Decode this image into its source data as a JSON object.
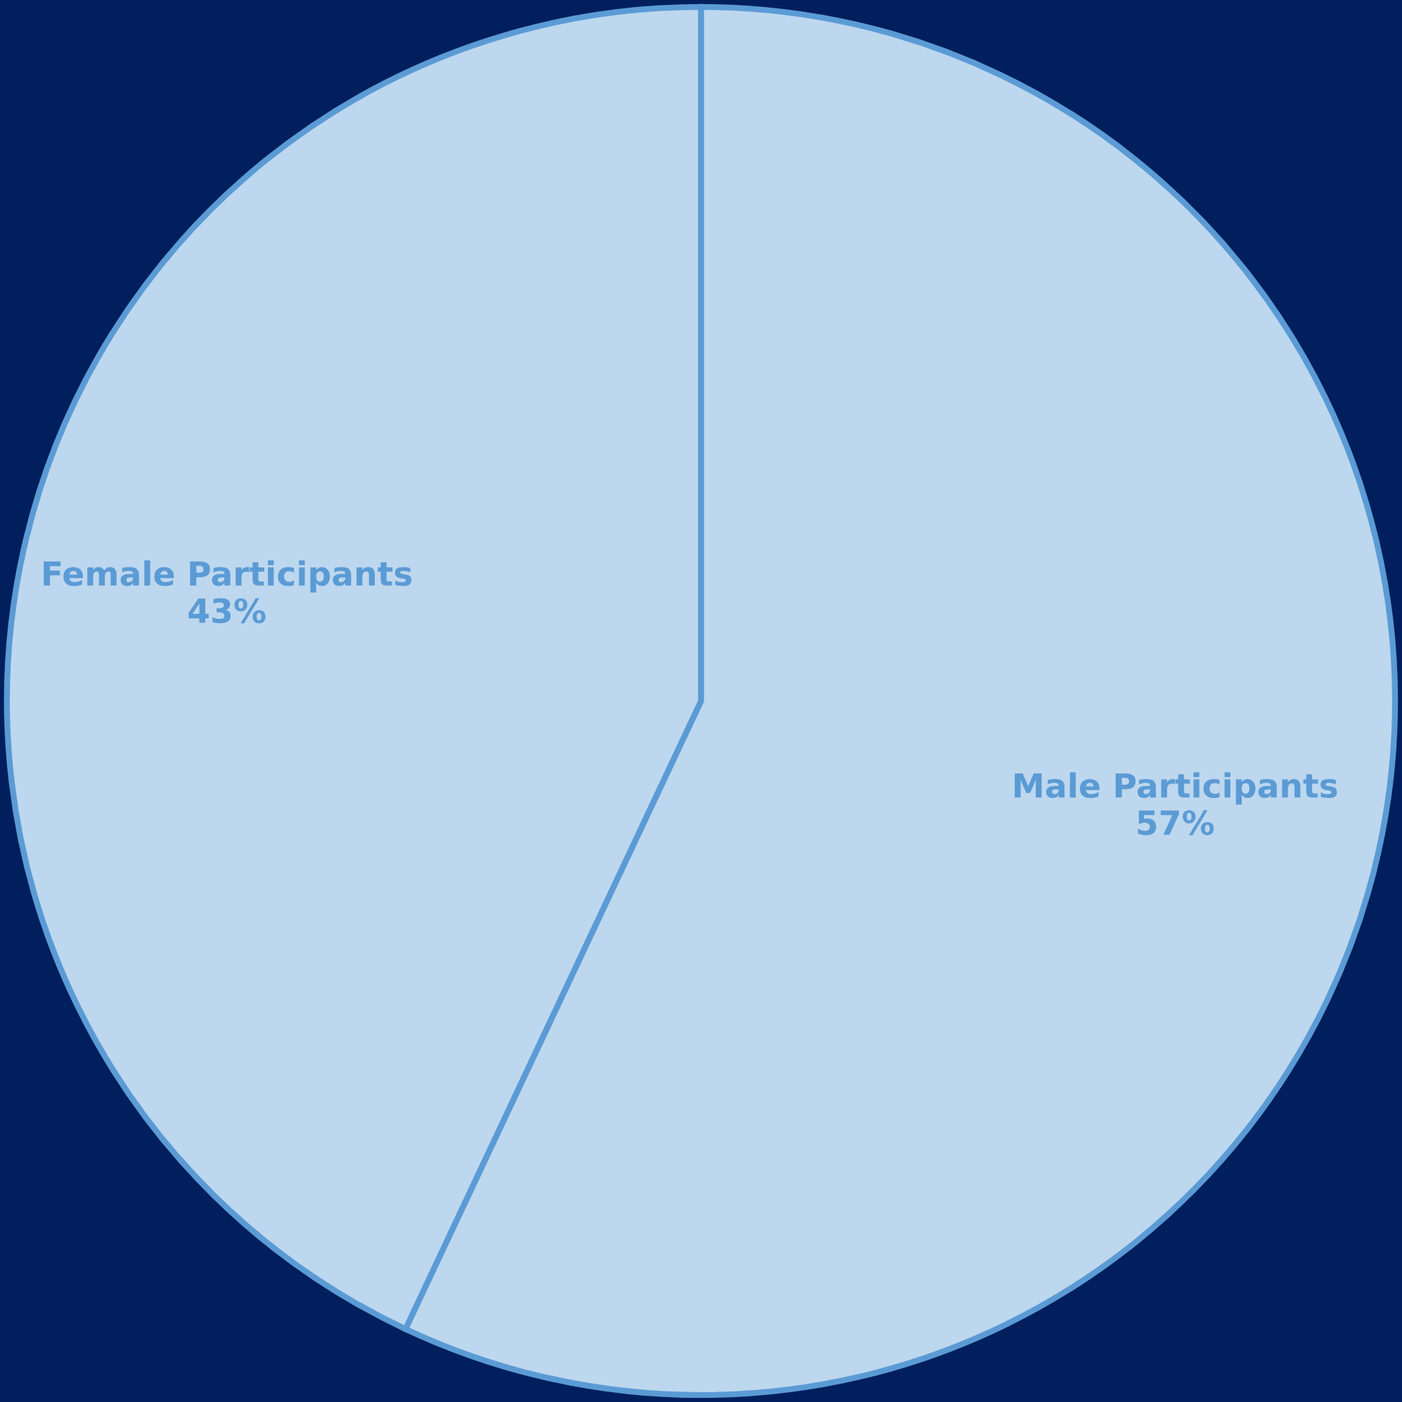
{
  "chart_data": {
    "type": "pie",
    "categories": [
      "Male Participants",
      "Female Participants"
    ],
    "values": [
      57,
      43
    ],
    "colors": [
      "#bdd7ee",
      "#bdd7ee"
    ],
    "value_labels": [
      "57%",
      "43%"
    ]
  }
}
